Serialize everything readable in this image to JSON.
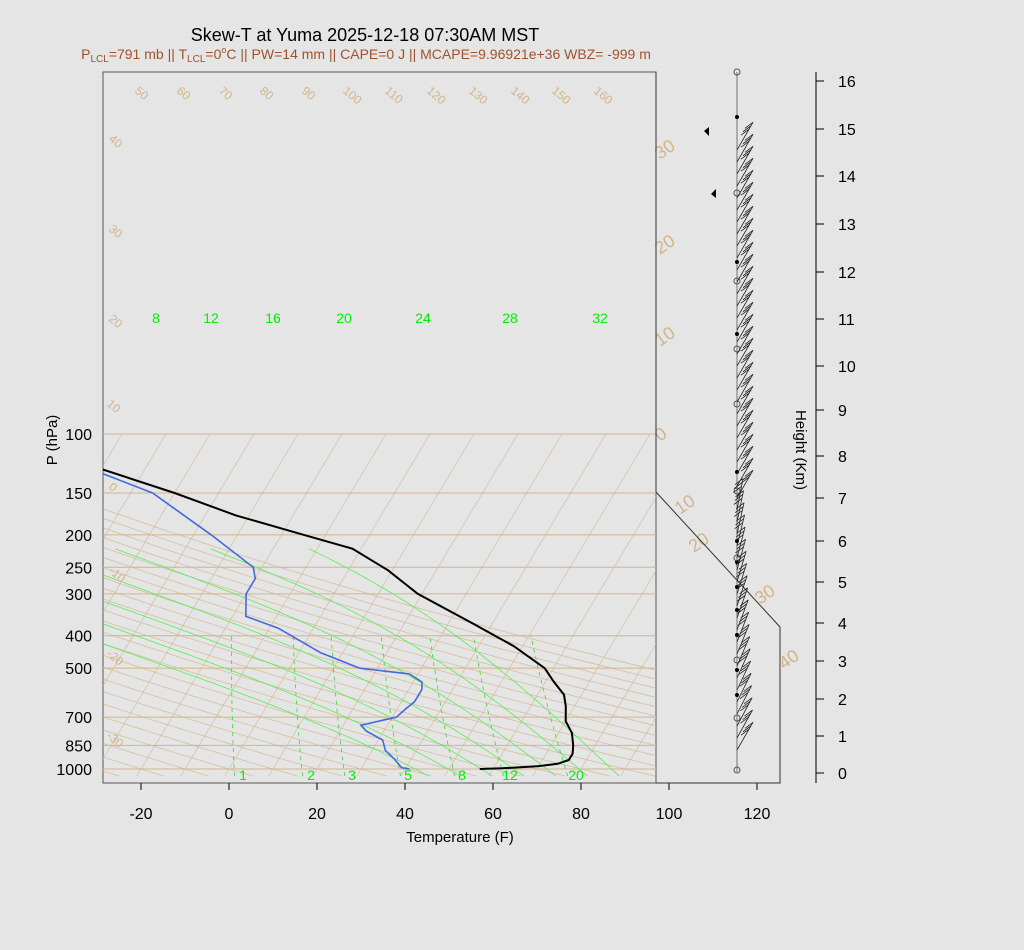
{
  "chart_data": {
    "type": "line",
    "title": "Skew-T at Yuma 2025-12-18 07:30AM MST",
    "subtitle": {
      "p_prefix": "P",
      "p_sub": "LCL",
      "p_rest": "=791 mb || T",
      "t_sub": "LCL",
      "t_val": "=0",
      "deg": "o",
      "t_rest": "C || PW=14 mm || CAPE=0 J || MCAPE=9.96921e+36 WBZ= -999 m"
    },
    "xlabel": "Temperature (F)",
    "ylabel": "P (hPa)",
    "y2label": "Height (Km)",
    "x_ticks": [
      "-20",
      "0",
      "20",
      "40",
      "60",
      "80",
      "100",
      "120"
    ],
    "x_tick_values": [
      -20,
      0,
      20,
      40,
      60,
      80,
      100,
      120
    ],
    "xlim": [
      -28,
      125
    ],
    "ylim": [
      1050,
      100
    ],
    "y_ticks": [
      "100",
      "150",
      "200",
      "250",
      "300",
      "400",
      "500",
      "700",
      "850",
      "1000"
    ],
    "y_tick_values": [
      100,
      150,
      200,
      250,
      300,
      400,
      500,
      700,
      850,
      1000
    ],
    "height_ticks": [
      "0",
      "1",
      "2",
      "3",
      "4",
      "5",
      "6",
      "7",
      "8",
      "9",
      "10",
      "11",
      "12",
      "13",
      "14",
      "15",
      "16"
    ],
    "mixing_ratio_top_labels": [
      "8",
      "12",
      "16",
      "20",
      "24",
      "28",
      "32"
    ],
    "mixing_ratio_bottom_labels": [
      "1",
      "2",
      "3",
      "5",
      "8",
      "12",
      "20"
    ],
    "theta_labels": [
      "50",
      "60",
      "70",
      "80",
      "90",
      "100",
      "110",
      "120",
      "130",
      "140",
      "150",
      "160"
    ],
    "theta_left_labels": [
      "40",
      "30",
      "20",
      "10",
      "0",
      "-10",
      "-20",
      "-30"
    ],
    "theta_e_labels": [
      "30",
      "20",
      "10",
      "0",
      "10",
      "20",
      "30",
      "40"
    ],
    "series": [
      {
        "name": "temperature",
        "color": "#000000",
        "points": [
          {
            "x": 57,
            "p": 1000
          },
          {
            "x": 62,
            "p": 995
          },
          {
            "x": 70,
            "p": 980
          },
          {
            "x": 74,
            "p": 965
          },
          {
            "x": 76,
            "p": 940
          },
          {
            "x": 76,
            "p": 900
          },
          {
            "x": 75,
            "p": 850
          },
          {
            "x": 73,
            "p": 780
          },
          {
            "x": 70,
            "p": 720
          },
          {
            "x": 68,
            "p": 650
          },
          {
            "x": 66,
            "p": 600
          },
          {
            "x": 62,
            "p": 550
          },
          {
            "x": 58,
            "p": 500
          },
          {
            "x": 48,
            "p": 430
          },
          {
            "x": 36,
            "p": 370
          },
          {
            "x": 19,
            "p": 300
          },
          {
            "x": 9,
            "p": 255
          },
          {
            "x": -2,
            "p": 220
          },
          {
            "x": -15,
            "p": 200
          },
          {
            "x": -33,
            "p": 175
          },
          {
            "x": -50,
            "p": 150
          },
          {
            "x": -72,
            "p": 125
          },
          {
            "x": -105,
            "p": 100
          }
        ]
      },
      {
        "name": "dewpoint",
        "color": "#4169e1",
        "points": [
          {
            "x": 41,
            "p": 1000
          },
          {
            "x": 39,
            "p": 990
          },
          {
            "x": 36,
            "p": 930
          },
          {
            "x": 33,
            "p": 880
          },
          {
            "x": 31,
            "p": 820
          },
          {
            "x": 26,
            "p": 770
          },
          {
            "x": 24,
            "p": 740
          },
          {
            "x": 31,
            "p": 700
          },
          {
            "x": 32,
            "p": 660
          },
          {
            "x": 33,
            "p": 630
          },
          {
            "x": 33,
            "p": 580
          },
          {
            "x": 32,
            "p": 550
          },
          {
            "x": 28,
            "p": 520
          },
          {
            "x": 16,
            "p": 500
          },
          {
            "x": 5,
            "p": 450
          },
          {
            "x": -8,
            "p": 380
          },
          {
            "x": -17,
            "p": 350
          },
          {
            "x": -20,
            "p": 300
          },
          {
            "x": -20,
            "p": 270
          },
          {
            "x": -22,
            "p": 250
          },
          {
            "x": -36,
            "p": 200
          },
          {
            "x": -55,
            "p": 150
          },
          {
            "x": -70,
            "p": 130
          },
          {
            "x": -100,
            "p": 100
          }
        ]
      }
    ]
  }
}
